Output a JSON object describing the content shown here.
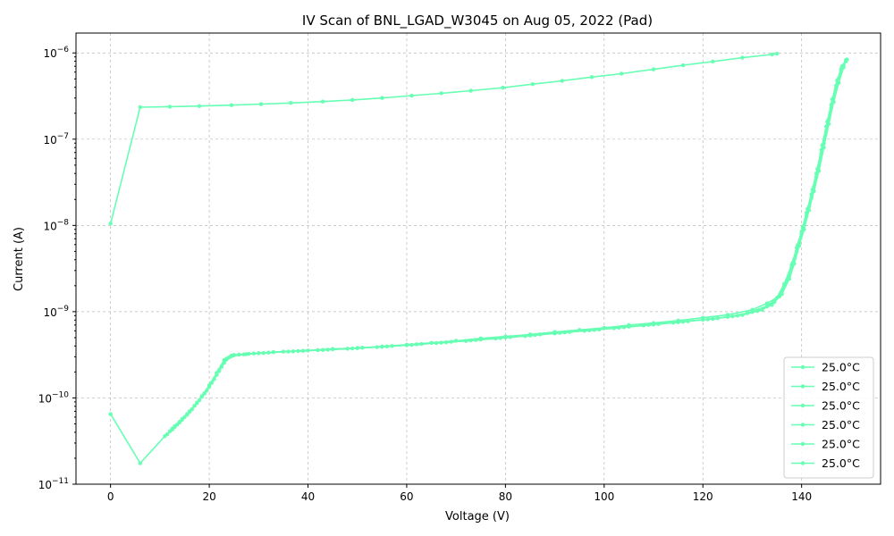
{
  "chart_data": {
    "type": "line",
    "title": "IV Scan of BNL_LGAD_W3045 on Aug 05, 2022 (Pad)",
    "xlabel": "Voltage (V)",
    "ylabel": "Current (A)",
    "xlim": [
      -7,
      156
    ],
    "ylim": [
      1e-11,
      1.7e-06
    ],
    "yscale": "log",
    "grid": true,
    "legend_position": "bottom-right",
    "line_color": "#66ffb3",
    "x_ticks": [
      {
        "value": 0,
        "label": "0"
      },
      {
        "value": 20,
        "label": "20"
      },
      {
        "value": 40,
        "label": "40"
      },
      {
        "value": 60,
        "label": "60"
      },
      {
        "value": 80,
        "label": "80"
      },
      {
        "value": 100,
        "label": "100"
      },
      {
        "value": 120,
        "label": "120"
      },
      {
        "value": 140,
        "label": "140"
      }
    ],
    "y_ticks": [
      {
        "value": 1e-11,
        "base": "10",
        "exp": "−11"
      },
      {
        "value": 1e-10,
        "base": "10",
        "exp": "−10"
      },
      {
        "value": 1e-09,
        "base": "10",
        "exp": "−9"
      },
      {
        "value": 1e-08,
        "base": "10",
        "exp": "−8"
      },
      {
        "value": 1e-07,
        "base": "10",
        "exp": "−7"
      },
      {
        "value": 1e-06,
        "base": "10",
        "exp": "−6"
      }
    ],
    "series": [
      {
        "name": "25.0$^\\circ$C",
        "x": [
          0,
          6,
          12,
          18,
          24.5,
          30.5,
          36.5,
          43,
          49,
          55,
          61,
          67,
          73,
          79.5,
          85.5,
          91.5,
          97.5,
          103.5,
          110,
          116,
          122,
          128,
          134,
          135
        ],
        "y": [
          1.05e-08,
          2.35e-07,
          2.38e-07,
          2.42e-07,
          2.48e-07,
          2.55e-07,
          2.63e-07,
          2.73e-07,
          2.85e-07,
          3e-07,
          3.2e-07,
          3.4e-07,
          3.65e-07,
          3.95e-07,
          4.35e-07,
          4.75e-07,
          5.25e-07,
          5.75e-07,
          6.45e-07,
          7.2e-07,
          7.95e-07,
          8.8e-07,
          9.6e-07,
          9.8e-07
        ]
      },
      {
        "name": "25.0$^\\circ$C",
        "x": [
          0,
          6,
          11,
          12.5,
          14,
          15.5,
          17,
          18.5,
          20,
          21.5,
          23,
          24.5,
          27,
          30,
          35,
          40,
          45,
          50,
          55,
          60,
          65,
          70,
          75,
          80,
          85,
          90,
          95,
          100,
          105,
          110,
          115,
          120,
          125,
          130,
          133,
          135,
          136.5,
          138,
          139,
          140,
          141,
          142,
          143,
          144,
          145,
          146,
          147,
          148,
          149
        ],
        "y": [
          6.5e-11,
          1.75e-11,
          3.6e-11,
          4.3e-11,
          5.2e-11,
          6.4e-11,
          8.1e-11,
          1.05e-10,
          1.4e-10,
          1.95e-10,
          2.75e-10,
          3.1e-10,
          3.2e-10,
          3.3e-10,
          3.45e-10,
          3.55e-10,
          3.7e-10,
          3.8e-10,
          3.95e-10,
          4.15e-10,
          4.35e-10,
          4.6e-10,
          4.9e-10,
          5.15e-10,
          5.45e-10,
          5.8e-10,
          6.15e-10,
          6.5e-10,
          7e-10,
          7.4e-10,
          7.9e-10,
          8.5e-10,
          9.2e-10,
          1.05e-09,
          1.25e-09,
          1.45e-09,
          2.1e-09,
          3.5e-09,
          5.5e-09,
          8.5e-09,
          1.4e-08,
          2.3e-08,
          4e-08,
          7.5e-08,
          1.4e-07,
          2.5e-07,
          4.2e-07,
          6.5e-07,
          8.2e-07
        ]
      },
      {
        "name": "25.0$^\\circ$C",
        "x": [
          11.5,
          13,
          14.5,
          16,
          17.5,
          19,
          20.5,
          22,
          23.5,
          25,
          28,
          32,
          38,
          44,
          50,
          56,
          62,
          68,
          74,
          80,
          86,
          92,
          98,
          104,
          110,
          116,
          122,
          127,
          131,
          134,
          136,
          137.5,
          138.5,
          139.5,
          140.5,
          141.5,
          142.5,
          143.5,
          144.5,
          145.5,
          146.5,
          147.5,
          148.5
        ],
        "y": [
          3.8e-11,
          4.6e-11,
          5.6e-11,
          6.9e-11,
          8.7e-11,
          1.12e-10,
          1.5e-10,
          2.1e-10,
          2.85e-10,
          3.15e-10,
          3.25e-10,
          3.35e-10,
          3.5e-10,
          3.62e-10,
          3.78e-10,
          3.95e-10,
          4.18e-10,
          4.42e-10,
          4.7e-10,
          5.02e-10,
          5.38e-10,
          5.75e-10,
          6.15e-10,
          6.6e-10,
          7.1e-10,
          7.65e-10,
          8.25e-10,
          9e-10,
          1.02e-09,
          1.2e-09,
          1.6e-09,
          2.4e-09,
          3.6e-09,
          5.8e-09,
          9e-09,
          1.5e-08,
          2.5e-08,
          4.3e-08,
          8e-08,
          1.5e-07,
          2.7e-07,
          4.5e-07,
          6.8e-07
        ]
      },
      {
        "name": "25.0$^\\circ$C",
        "x": [
          12,
          13.5,
          15,
          16.5,
          18,
          19.5,
          21,
          22.5,
          24,
          26,
          29,
          33,
          39,
          45,
          51,
          57,
          63,
          69,
          75,
          81,
          87,
          93,
          99,
          105,
          111,
          117,
          123,
          128,
          132,
          134.5,
          136.5,
          138,
          139,
          140,
          141,
          142,
          143,
          144,
          145,
          146,
          147,
          148,
          149
        ],
        "y": [
          4.1e-11,
          4.9e-11,
          6e-11,
          7.4e-11,
          9.4e-11,
          1.22e-10,
          1.65e-10,
          2.3e-10,
          2.95e-10,
          3.18e-10,
          3.28e-10,
          3.4e-10,
          3.52e-10,
          3.66e-10,
          3.82e-10,
          4e-10,
          4.22e-10,
          4.48e-10,
          4.76e-10,
          5.08e-10,
          5.45e-10,
          5.82e-10,
          6.22e-10,
          6.7e-10,
          7.2e-10,
          7.75e-10,
          8.4e-10,
          9.15e-10,
          1.05e-09,
          1.3e-09,
          2e-09,
          3.3e-09,
          5e-09,
          8e-09,
          1.3e-08,
          2.1e-08,
          3.7e-08,
          6.8e-08,
          1.25e-07,
          2.3e-07,
          4e-07,
          6.2e-07,
          8e-07
        ]
      },
      {
        "name": "25.0$^\\circ$C",
        "x": [
          12.5,
          14,
          15.5,
          17,
          18.5,
          20,
          21.5,
          23,
          24.5,
          27.5,
          31,
          37,
          43,
          49,
          55,
          61,
          67,
          73,
          79,
          85,
          91,
          97,
          103,
          109,
          115,
          121,
          126,
          130,
          133.5,
          136,
          137.5,
          138.5,
          139.5,
          140.5,
          141.5,
          142.5,
          143.5,
          144.5,
          145.5,
          146.5,
          147.5,
          148.5,
          149.2
        ],
        "y": [
          4.4e-11,
          5.3e-11,
          6.5e-11,
          8.1e-11,
          1.03e-10,
          1.35e-10,
          1.85e-10,
          2.55e-10,
          3.05e-10,
          3.22e-10,
          3.32e-10,
          3.47e-10,
          3.6e-10,
          3.75e-10,
          3.92e-10,
          4.12e-10,
          4.38e-10,
          4.64e-10,
          4.95e-10,
          5.3e-10,
          5.68e-10,
          6.08e-10,
          6.52e-10,
          7.02e-10,
          7.55e-10,
          8.15e-10,
          8.85e-10,
          9.9e-10,
          1.2e-09,
          1.7e-09,
          2.6e-09,
          4e-09,
          6.3e-09,
          1e-08,
          1.65e-08,
          2.8e-08,
          4.9e-08,
          9e-08,
          1.7e-07,
          3e-07,
          5e-07,
          7.2e-07,
          8.4e-07
        ]
      },
      {
        "name": "25.0$^\\circ$C",
        "x": [
          13,
          14.5,
          16,
          17.5,
          19,
          20.5,
          22,
          23.5,
          25,
          30,
          36,
          42,
          48,
          54,
          60,
          66,
          72,
          78,
          84,
          90,
          96,
          102,
          108,
          114,
          120,
          125,
          129,
          133,
          135.5,
          137,
          138.2,
          139.2,
          140.2,
          141.2,
          142.2,
          143.2,
          144.2,
          145.2,
          146.2,
          147.2,
          148.2,
          149
        ],
        "y": [
          4.7e-11,
          5.7e-11,
          7e-11,
          8.8e-11,
          1.13e-10,
          1.5e-10,
          2.05e-10,
          2.8e-10,
          3.12e-10,
          3.3e-10,
          3.45e-10,
          3.58e-10,
          3.72e-10,
          3.88e-10,
          4.08e-10,
          4.32e-10,
          4.58e-10,
          4.88e-10,
          5.22e-10,
          5.6e-10,
          6e-10,
          6.42e-10,
          6.92e-10,
          7.45e-10,
          8.05e-10,
          8.7e-10,
          9.6e-10,
          1.15e-09,
          1.5e-09,
          2.3e-09,
          3.7e-09,
          5.9e-09,
          9.5e-09,
          1.55e-08,
          2.6e-08,
          4.5e-08,
          8.5e-08,
          1.6e-07,
          2.9e-07,
          4.8e-07,
          7e-07,
          8.3e-07
        ]
      }
    ]
  }
}
